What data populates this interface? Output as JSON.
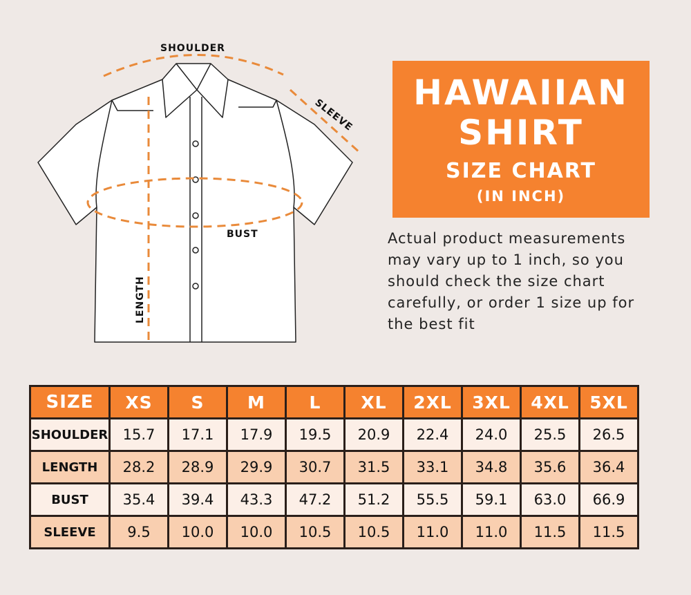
{
  "diagram": {
    "labels": {
      "shoulder": "SHOULDER",
      "sleeve": "SLEEVE",
      "bust": "BUST",
      "length": "LENGTH"
    }
  },
  "title": {
    "line1": "HAWAIIAN",
    "line2": "SHIRT",
    "line3": "SIZE CHART",
    "line4": "(IN INCH)"
  },
  "note": "Actual product measurements may vary up to 1 inch, so you should check the size chart carefully, or order 1 size up for the best fit",
  "colors": {
    "accent": "#f5822f",
    "row_light": "#fcefe7",
    "row_dark": "#f9cfb0",
    "background": "#efe9e6"
  },
  "table": {
    "headers": [
      "SIZE",
      "XS",
      "S",
      "M",
      "L",
      "XL",
      "2XL",
      "3XL",
      "4XL",
      "5XL"
    ],
    "rows": [
      {
        "label": "SHOULDER",
        "values": [
          "15.7",
          "17.1",
          "17.9",
          "19.5",
          "20.9",
          "22.4",
          "24.0",
          "25.5",
          "26.5"
        ]
      },
      {
        "label": "LENGTH",
        "values": [
          "28.2",
          "28.9",
          "29.9",
          "30.7",
          "31.5",
          "33.1",
          "34.8",
          "35.6",
          "36.4"
        ]
      },
      {
        "label": "BUST",
        "values": [
          "35.4",
          "39.4",
          "43.3",
          "47.2",
          "51.2",
          "55.5",
          "59.1",
          "63.0",
          "66.9"
        ]
      },
      {
        "label": "SLEEVE",
        "values": [
          "9.5",
          "10.0",
          "10.0",
          "10.5",
          "10.5",
          "11.0",
          "11.0",
          "11.5",
          "11.5"
        ]
      }
    ]
  }
}
